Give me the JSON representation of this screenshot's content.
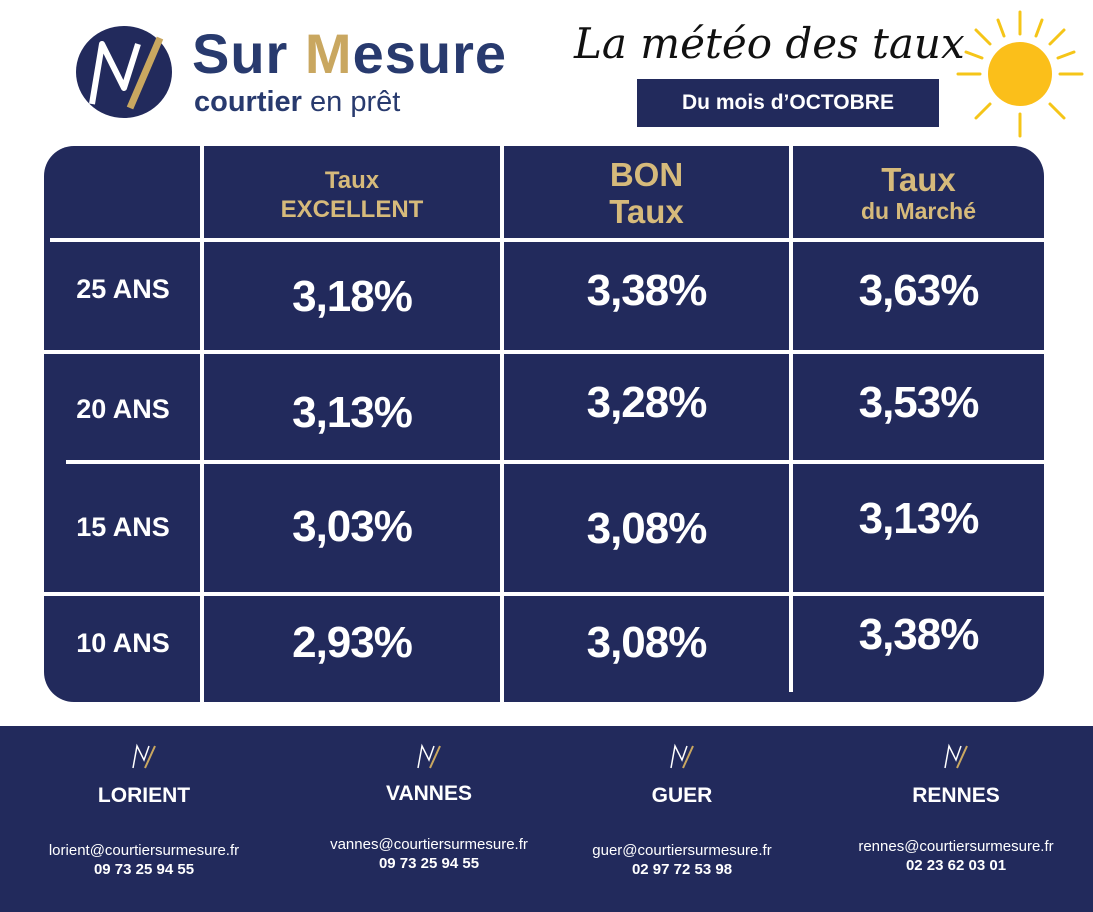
{
  "brand": {
    "name_prefix": "Sur ",
    "name_m": "M",
    "name_suffix": "esure",
    "sub_bold": "courtier",
    "sub_rest": " en prêt",
    "colors": {
      "navy": "#222a5c",
      "gold": "#c9a760"
    }
  },
  "header": {
    "title": "La météo des taux",
    "badge": "Du mois d’OCTOBRE",
    "icon": "sun-icon"
  },
  "table": {
    "columns": [
      {
        "line1": "Taux",
        "line2": "EXCELLENT"
      },
      {
        "line1": "BON",
        "line2": "Taux"
      },
      {
        "line1": "Taux",
        "line2": "du Marché"
      }
    ],
    "rows": [
      {
        "label": "25 ANS",
        "values": [
          "3,18%",
          "3,38%",
          "3,63%"
        ]
      },
      {
        "label": "20 ANS",
        "values": [
          "3,13%",
          "3,28%",
          "3,53%"
        ]
      },
      {
        "label": "15 ANS",
        "values": [
          "3,03%",
          "3,08%",
          "3,13%"
        ]
      },
      {
        "label": "10 ANS",
        "values": [
          "2,93%",
          "3,08%",
          "3,38%"
        ]
      }
    ]
  },
  "offices": [
    {
      "city": "LORIENT",
      "email": "lorient@courtiersurmesure.fr",
      "phone": "09 73 25 94 55"
    },
    {
      "city": "VANNES",
      "email": "vannes@courtiersurmesure.fr",
      "phone": "09 73 25 94 55"
    },
    {
      "city": "GUER",
      "email": "guer@courtiersurmesure.fr",
      "phone": "02 97 72 53 98"
    },
    {
      "city": "RENNES",
      "email": "rennes@courtiersurmesure.fr",
      "phone": "02 23 62 03 01"
    }
  ]
}
